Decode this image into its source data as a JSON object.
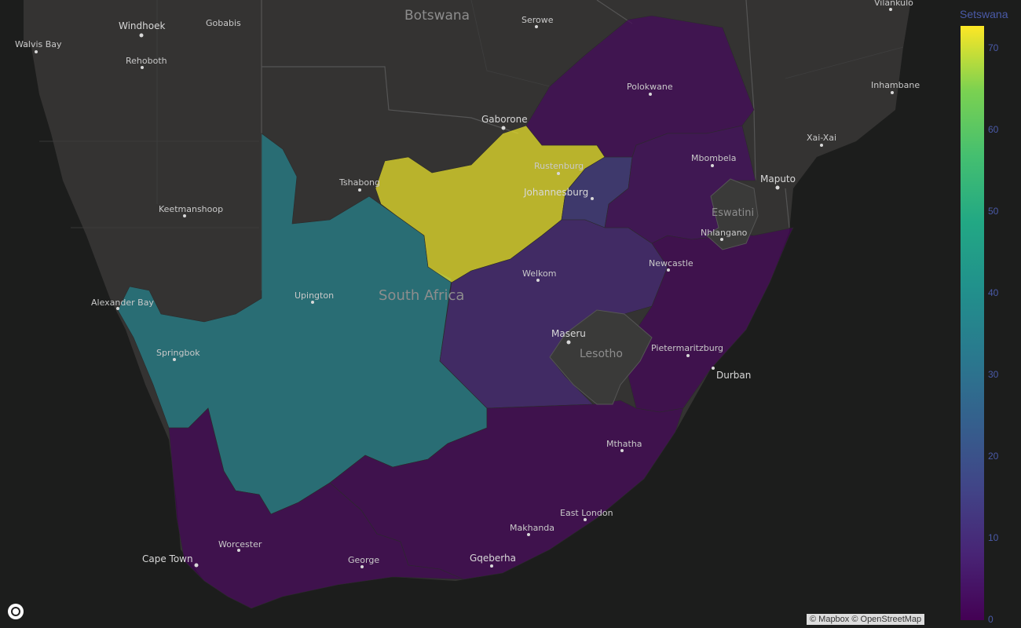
{
  "map": {
    "basemap": "dark",
    "colorscale": "viridis",
    "countries": [
      {
        "id": "botswana",
        "label": "Botswana"
      },
      {
        "id": "south-africa",
        "label": "South Africa"
      },
      {
        "id": "eswatini",
        "label": "Eswatini"
      },
      {
        "id": "lesotho",
        "label": "Lesotho"
      }
    ],
    "provinces": [
      {
        "id": "north-west",
        "value": 72
      },
      {
        "id": "northern-cape",
        "value": 36
      },
      {
        "id": "gauteng",
        "value": 14
      },
      {
        "id": "free-state",
        "value": 9
      },
      {
        "id": "limpopo",
        "value": 2
      },
      {
        "id": "mpumalanga",
        "value": 3
      },
      {
        "id": "kwazulu-natal",
        "value": 1
      },
      {
        "id": "eastern-cape",
        "value": 1
      },
      {
        "id": "western-cape",
        "value": 1
      }
    ],
    "cities": [
      {
        "id": "windhoek",
        "label": "Windhoek"
      },
      {
        "id": "gobabis",
        "label": "Gobabis"
      },
      {
        "id": "walvis-bay",
        "label": "Walvis Bay"
      },
      {
        "id": "rehoboth",
        "label": "Rehoboth"
      },
      {
        "id": "serowe",
        "label": "Serowe"
      },
      {
        "id": "vilankulo",
        "label": "Vilankulo"
      },
      {
        "id": "polokwane",
        "label": "Polokwane"
      },
      {
        "id": "inhambane",
        "label": "Inhambane"
      },
      {
        "id": "gaborone",
        "label": "Gaborone"
      },
      {
        "id": "xai-xai",
        "label": "Xai-Xai"
      },
      {
        "id": "mbombela",
        "label": "Mbombela"
      },
      {
        "id": "rustenburg",
        "label": "Rustenburg"
      },
      {
        "id": "tshabong",
        "label": "Tshabong"
      },
      {
        "id": "johannesburg",
        "label": "Johannesburg"
      },
      {
        "id": "maputo",
        "label": "Maputo"
      },
      {
        "id": "keetmanshoop",
        "label": "Keetmanshoop"
      },
      {
        "id": "nhlangano",
        "label": "Nhlangano"
      },
      {
        "id": "newcastle",
        "label": "Newcastle"
      },
      {
        "id": "welkom",
        "label": "Welkom"
      },
      {
        "id": "alexander-bay",
        "label": "Alexander Bay"
      },
      {
        "id": "upington",
        "label": "Upington"
      },
      {
        "id": "maseru",
        "label": "Maseru"
      },
      {
        "id": "pietermaritzburg",
        "label": "Pietermaritzburg"
      },
      {
        "id": "springbok",
        "label": "Springbok"
      },
      {
        "id": "durban",
        "label": "Durban"
      },
      {
        "id": "mthatha",
        "label": "Mthatha"
      },
      {
        "id": "east-london",
        "label": "East London"
      },
      {
        "id": "makhanda",
        "label": "Makhanda"
      },
      {
        "id": "worcester",
        "label": "Worcester"
      },
      {
        "id": "cape-town",
        "label": "Cape Town"
      },
      {
        "id": "george",
        "label": "George"
      },
      {
        "id": "gqeberha",
        "label": "Gqeberha"
      }
    ]
  },
  "colorbar": {
    "title": "Setswana",
    "min": 0,
    "max": 73,
    "ticks": [
      "70",
      "60",
      "50",
      "40",
      "30",
      "20",
      "10",
      "0"
    ]
  },
  "attribution": "© Mapbox © OpenStreetMap",
  "colors": {
    "background": "#1c1d1c",
    "land": "#343332",
    "border": "#4a4a4a"
  }
}
